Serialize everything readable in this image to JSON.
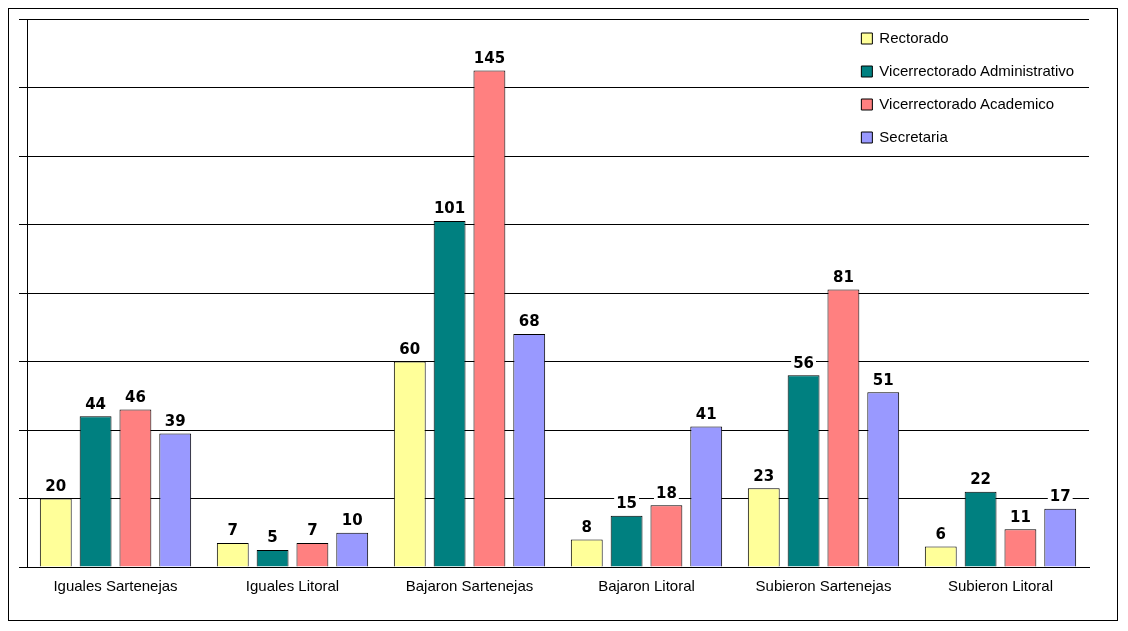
{
  "chart_data": {
    "type": "bar",
    "categories": [
      "Iguales Sartenejas",
      "Iguales Litoral",
      "Bajaron Sartenejas",
      "Bajaron Litoral",
      "Subieron Sartenejas",
      "Subieron Litoral"
    ],
    "series": [
      {
        "name": "Rectorado",
        "color": "#ffff99",
        "values": [
          20,
          7,
          60,
          8,
          23,
          6
        ]
      },
      {
        "name": "Vicerrectorado Administrativo",
        "color": "#008080",
        "values": [
          44,
          5,
          101,
          15,
          56,
          22
        ]
      },
      {
        "name": "Vicerrectorado Academico",
        "color": "#ff8080",
        "values": [
          46,
          7,
          145,
          18,
          81,
          11
        ]
      },
      {
        "name": "Secretaria",
        "color": "#9999ff",
        "values": [
          39,
          10,
          68,
          41,
          51,
          17
        ]
      }
    ],
    "ylim": [
      0,
      160
    ],
    "yticks": [
      0,
      20,
      40,
      60,
      80,
      100,
      120,
      140,
      160
    ],
    "tick_labels": "x",
    "grid": "y",
    "legend": "top right",
    "data_labels": true
  }
}
